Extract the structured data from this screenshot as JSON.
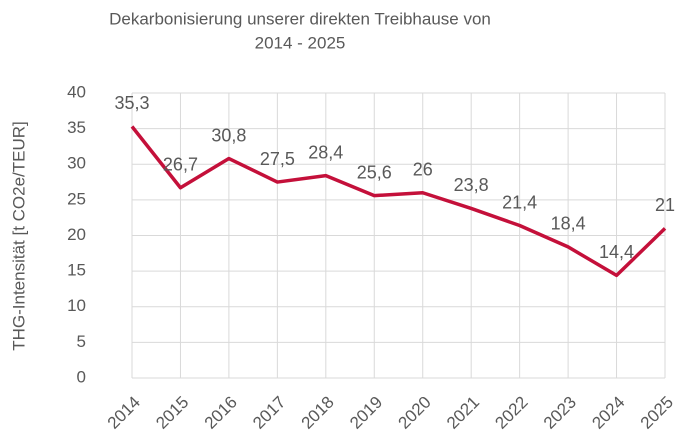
{
  "chart_data": {
    "type": "line",
    "title": [
      "Dekarbonisierung unserer direkten Treibhause von",
      "2014 - 2025"
    ],
    "y_label": "THG-Intensität [t CO2e/TEUR]",
    "categories": [
      "2014",
      "2015",
      "2016",
      "2017",
      "2018",
      "2019",
      "2020",
      "2021",
      "2022",
      "2023",
      "2024",
      "2025"
    ],
    "series": [
      {
        "name": "THG-Intensität",
        "color": "#c4103a",
        "values": [
          35.3,
          26.7,
          30.8,
          27.5,
          28.4,
          25.6,
          26,
          23.8,
          21.4,
          18.4,
          14.4,
          21
        ],
        "value_labels": [
          "35,3",
          "26,7",
          "30,8",
          "27,5",
          "28,4",
          "25,6",
          "26",
          "23,8",
          "21,4",
          "18,4",
          "14,4",
          "21"
        ]
      }
    ],
    "ylim": [
      0,
      40
    ],
    "yticks": [
      0,
      5,
      10,
      15,
      20,
      25,
      30,
      35,
      40
    ],
    "grid": true
  }
}
